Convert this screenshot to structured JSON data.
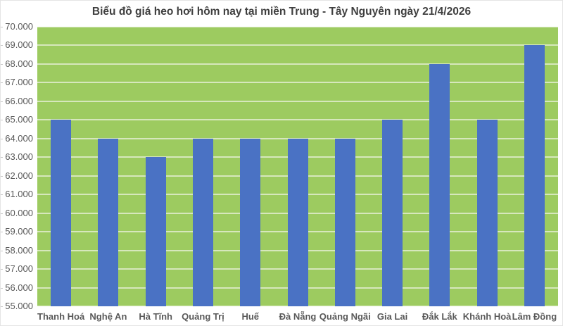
{
  "chart_data": {
    "type": "bar",
    "title": "Biểu đồ giá heo hơi hôm nay tại miền Trung - Tây Nguyên ngày 21/4/2026",
    "categories": [
      "Thanh Hoá",
      "Nghệ An",
      "Hà Tĩnh",
      "Quảng Trị",
      "Huế",
      "Đà Nẵng",
      "Quảng Ngãi",
      "Gia Lai",
      "Đắk Lắk",
      "Khánh Hoà",
      "Lâm Đồng"
    ],
    "values": [
      65000,
      64000,
      63000,
      64000,
      64000,
      64000,
      64000,
      65000,
      68000,
      65000,
      69000
    ],
    "xlabel": "",
    "ylabel": "",
    "ylim": [
      55000,
      70000
    ],
    "ytick_step": 1000,
    "ytick_labels": [
      "70.000",
      "69.000",
      "68.000",
      "67.000",
      "66.000",
      "65.000",
      "64.000",
      "63.000",
      "62.000",
      "61.000",
      "60.000",
      "59.000",
      "58.000",
      "57.000",
      "56.000",
      "55.000"
    ],
    "grid": true,
    "legend": false,
    "colors": {
      "bar": "#4a72c4",
      "plot_background": "#9dcb60",
      "gridline": "#d6e7bc",
      "title_text": "#3f3f3f",
      "axis_text": "#595959"
    }
  }
}
